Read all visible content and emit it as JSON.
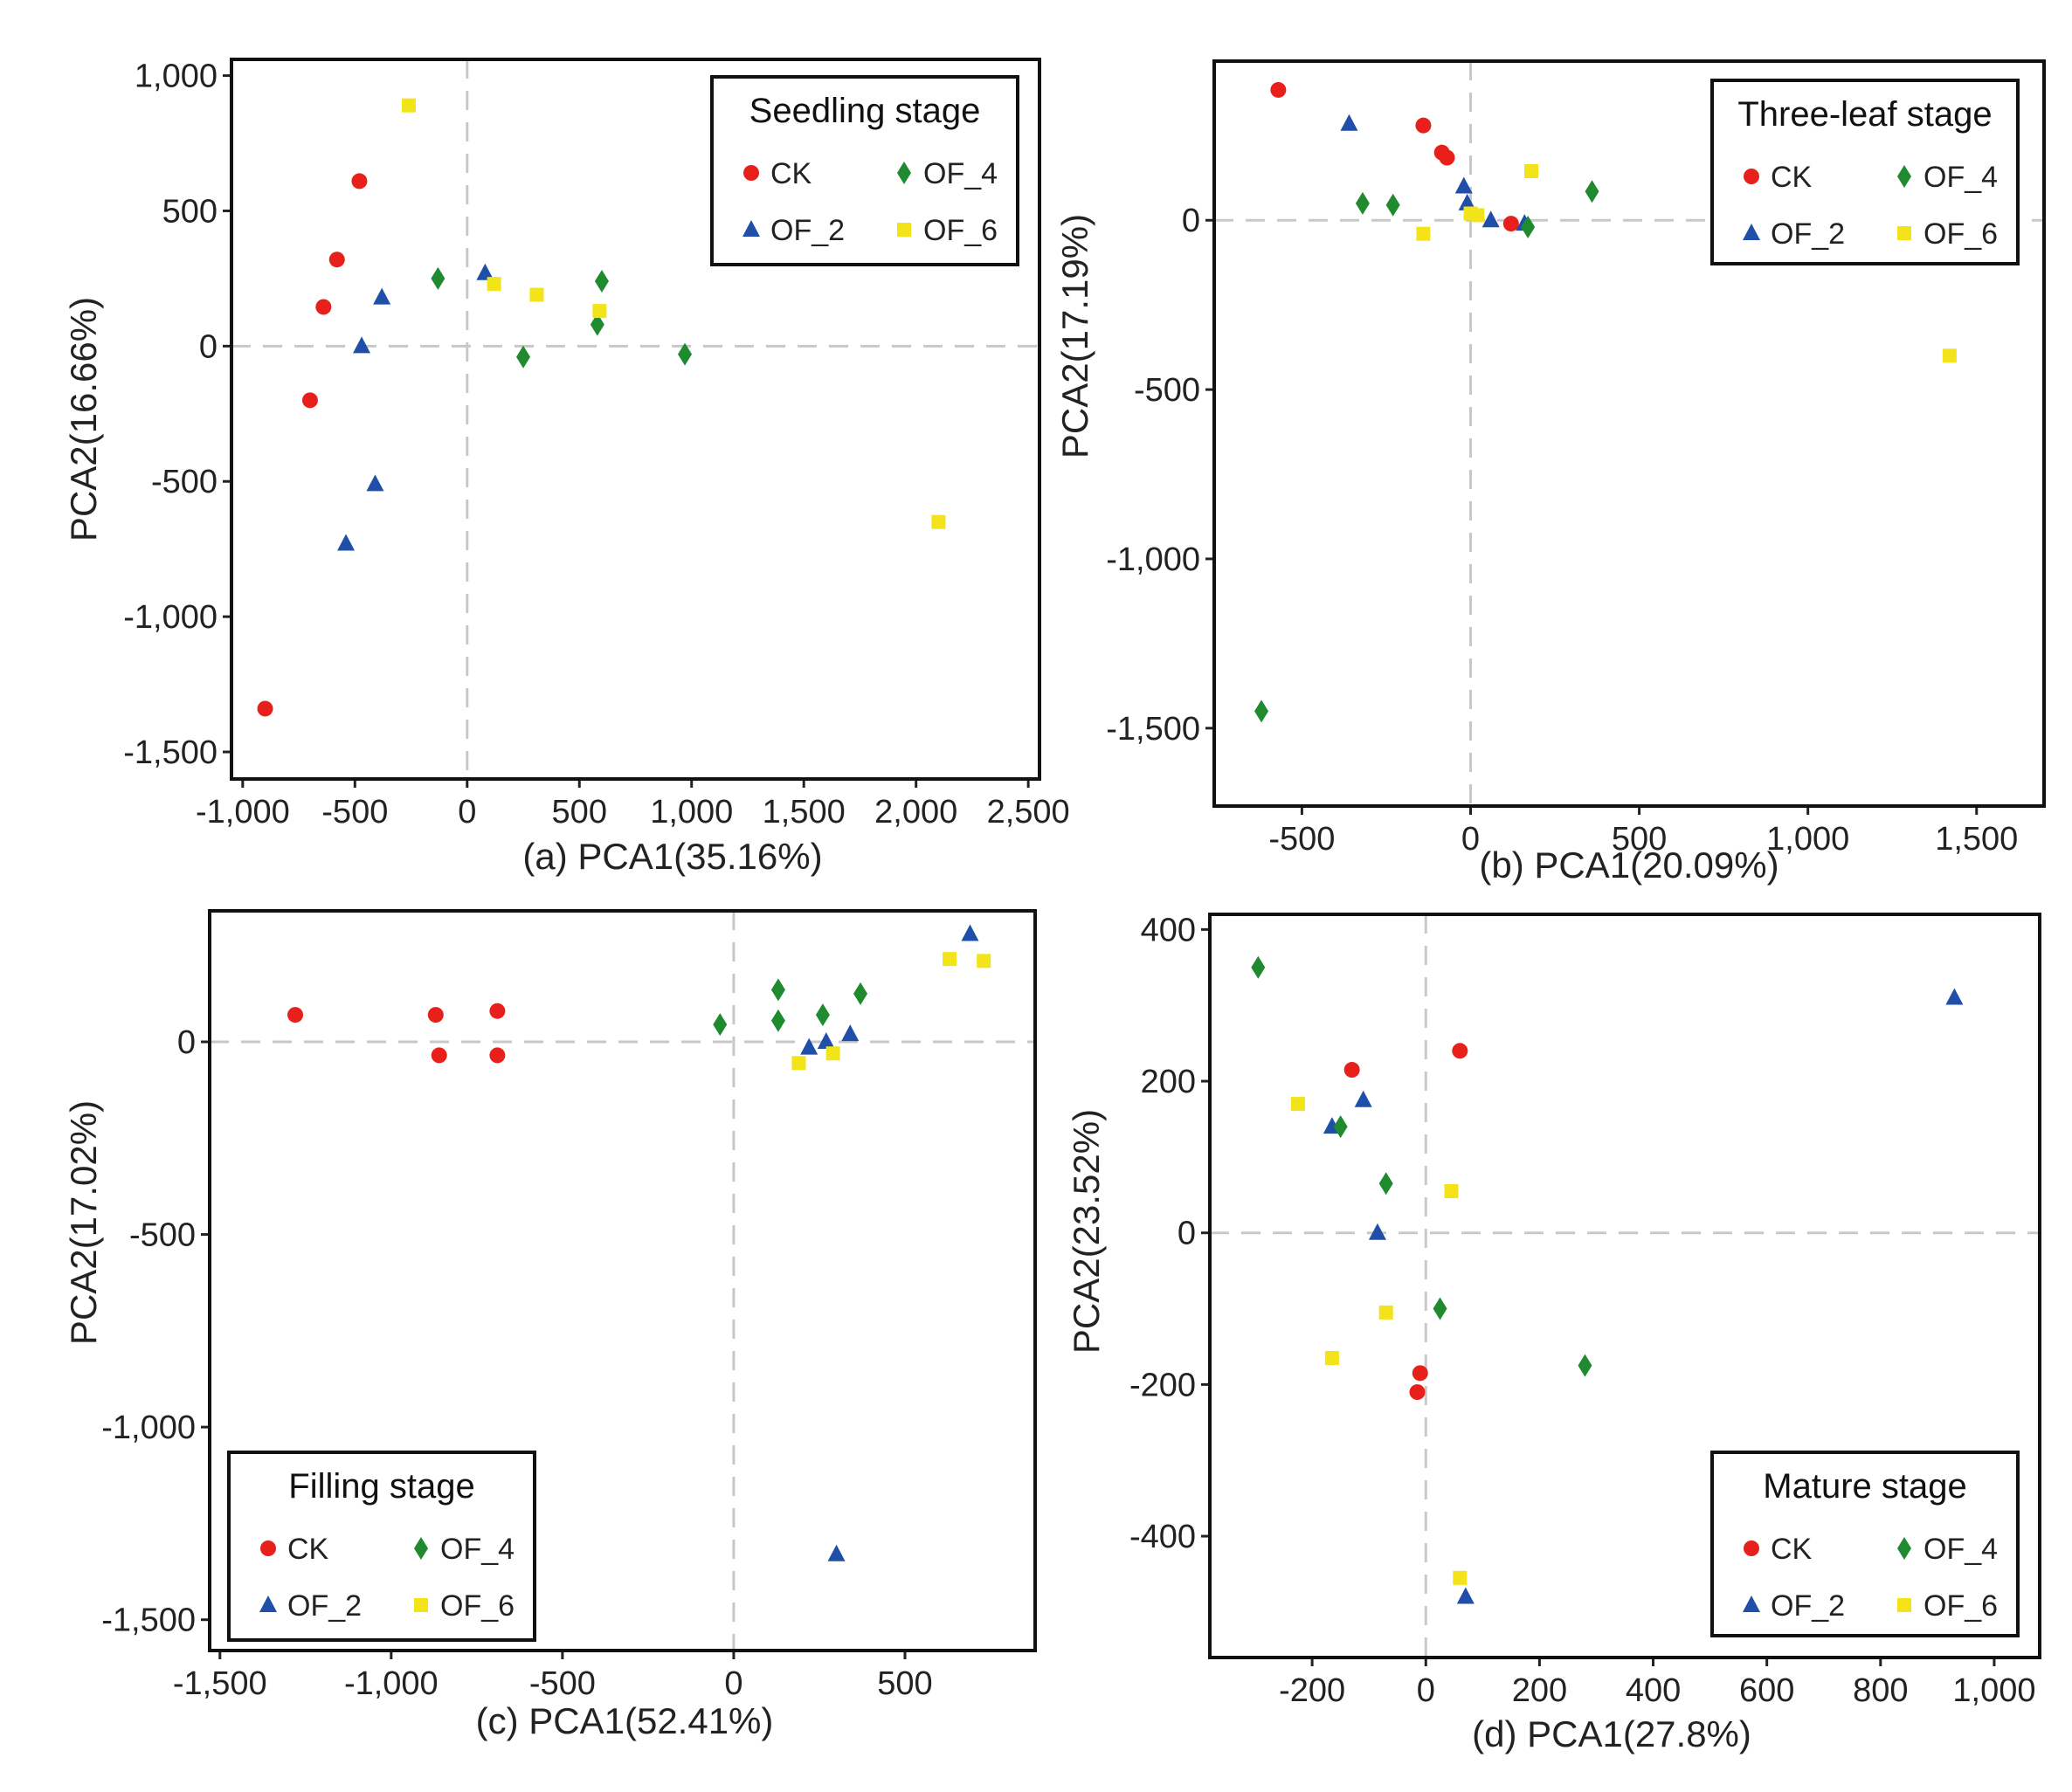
{
  "chart_data": [
    {
      "type": "scatter",
      "panel": "a",
      "caption": "(a)",
      "xlabel": "PCA1(35.16%)",
      "ylabel": "PCA2(16.66%)",
      "xlim": [
        -1050,
        2550
      ],
      "ylim": [
        -1600,
        1060
      ],
      "xticks": [
        -1000,
        -500,
        0,
        500,
        1000,
        1500,
        2000,
        2500
      ],
      "xtick_labels": [
        "-1,000",
        "-500",
        "0",
        "500",
        "1,000",
        "1,500",
        "2,000",
        "2,500"
      ],
      "yticks": [
        -1500,
        -1000,
        -500,
        0,
        500,
        1000
      ],
      "ytick_labels": [
        "-1,500",
        "-1,000",
        "-500",
        "0",
        "500",
        "1,000"
      ],
      "legend_title": "Seedling stage",
      "legend_position": "top-right",
      "series": [
        {
          "name": "CK",
          "color": "#e8201c",
          "shape": "circle",
          "points": [
            [
              -480,
              610
            ],
            [
              -580,
              320
            ],
            [
              -640,
              145
            ],
            [
              -700,
              -200
            ],
            [
              -900,
              -1340
            ]
          ]
        },
        {
          "name": "OF_2",
          "color": "#1f4fa8",
          "shape": "triangle",
          "points": [
            [
              -380,
              180
            ],
            [
              -470,
              0
            ],
            [
              -410,
              -510
            ],
            [
              -540,
              -730
            ],
            [
              80,
              270
            ]
          ]
        },
        {
          "name": "OF_4",
          "color": "#1f8a2e",
          "shape": "diamond",
          "points": [
            [
              -130,
              250
            ],
            [
              250,
              -40
            ],
            [
              580,
              80
            ],
            [
              600,
              240
            ],
            [
              970,
              -30
            ]
          ]
        },
        {
          "name": "OF_6",
          "color": "#f2e31a",
          "shape": "square",
          "points": [
            [
              -260,
              890
            ],
            [
              120,
              230
            ],
            [
              310,
              190
            ],
            [
              590,
              130
            ],
            [
              2100,
              -650
            ]
          ]
        }
      ]
    },
    {
      "type": "scatter",
      "panel": "b",
      "caption": "(b)",
      "xlabel": "PCA1(20.09%)",
      "ylabel": "PCA2(17.19%)",
      "xlim": [
        -760,
        1700
      ],
      "ylim": [
        -1730,
        470
      ],
      "xticks": [
        -500,
        0,
        500,
        1000,
        1500
      ],
      "xtick_labels": [
        "-500",
        "0",
        "500",
        "1,000",
        "1,500"
      ],
      "yticks": [
        -1500,
        -1000,
        -500,
        0
      ],
      "ytick_labels": [
        "-1,500",
        "-1,000",
        "-500",
        "0"
      ],
      "legend_title": "Three-leaf stage",
      "legend_position": "top-right",
      "series": [
        {
          "name": "CK",
          "color": "#e8201c",
          "shape": "circle",
          "points": [
            [
              -570,
              385
            ],
            [
              -140,
              280
            ],
            [
              -85,
              200
            ],
            [
              -70,
              185
            ],
            [
              120,
              -10
            ]
          ]
        },
        {
          "name": "OF_2",
          "color": "#1f4fa8",
          "shape": "triangle",
          "points": [
            [
              -360,
              285
            ],
            [
              -20,
              100
            ],
            [
              60,
              0
            ],
            [
              160,
              -10
            ],
            [
              -10,
              50
            ]
          ]
        },
        {
          "name": "OF_4",
          "color": "#1f8a2e",
          "shape": "diamond",
          "points": [
            [
              -320,
              50
            ],
            [
              -230,
              45
            ],
            [
              170,
              -20
            ],
            [
              360,
              85
            ],
            [
              -620,
              -1450
            ]
          ]
        },
        {
          "name": "OF_6",
          "color": "#f2e31a",
          "shape": "square",
          "points": [
            [
              -140,
              -40
            ],
            [
              0,
              20
            ],
            [
              20,
              15
            ],
            [
              180,
              145
            ],
            [
              1420,
              -400
            ]
          ]
        }
      ]
    },
    {
      "type": "scatter",
      "panel": "c",
      "caption": "(c)",
      "xlabel": "PCA1(52.41%)",
      "ylabel": "PCA2(17.02%)",
      "xlim": [
        -1530,
        880
      ],
      "ylim": [
        -1580,
        340
      ],
      "xticks": [
        -1500,
        -1000,
        -500,
        0,
        500
      ],
      "xtick_labels": [
        "-1,500",
        "-1,000",
        "-500",
        "0",
        "500"
      ],
      "yticks": [
        -1500,
        -1000,
        -500,
        0
      ],
      "ytick_labels": [
        "-1,500",
        "-1,000",
        "-500",
        "0"
      ],
      "legend_title": "Filling stage",
      "legend_position": "bottom-left",
      "series": [
        {
          "name": "CK",
          "color": "#e8201c",
          "shape": "circle",
          "points": [
            [
              -1280,
              70
            ],
            [
              -870,
              70
            ],
            [
              -860,
              -35
            ],
            [
              -690,
              80
            ],
            [
              -690,
              -35
            ]
          ]
        },
        {
          "name": "OF_2",
          "color": "#1f4fa8",
          "shape": "triangle",
          "points": [
            [
              220,
              -15
            ],
            [
              270,
              0
            ],
            [
              340,
              20
            ],
            [
              690,
              280
            ],
            [
              300,
              -1330
            ]
          ]
        },
        {
          "name": "OF_4",
          "color": "#1f8a2e",
          "shape": "diamond",
          "points": [
            [
              -40,
              45
            ],
            [
              130,
              135
            ],
            [
              130,
              55
            ],
            [
              260,
              70
            ],
            [
              370,
              125
            ]
          ]
        },
        {
          "name": "OF_6",
          "color": "#f2e31a",
          "shape": "square",
          "points": [
            [
              190,
              -55
            ],
            [
              290,
              -30
            ],
            [
              630,
              215
            ],
            [
              730,
              210
            ]
          ]
        }
      ]
    },
    {
      "type": "scatter",
      "panel": "d",
      "caption": "(d)",
      "xlabel": "PCA1(27.8%)",
      "ylabel": "PCA2(23.52%)",
      "xlim": [
        -380,
        1080
      ],
      "ylim": [
        -560,
        420
      ],
      "xticks": [
        -200,
        0,
        200,
        400,
        600,
        800,
        1000
      ],
      "xtick_labels": [
        "-200",
        "0",
        "200",
        "400",
        "600",
        "800",
        "1,000"
      ],
      "yticks": [
        -400,
        -200,
        0,
        200,
        400
      ],
      "ytick_labels": [
        "-400",
        "-200",
        "0",
        "200",
        "400"
      ],
      "legend_title": "Mature stage",
      "legend_position": "bottom-right",
      "series": [
        {
          "name": "CK",
          "color": "#e8201c",
          "shape": "circle",
          "points": [
            [
              -130,
              215
            ],
            [
              60,
              240
            ],
            [
              -10,
              -185
            ],
            [
              -15,
              -210
            ]
          ]
        },
        {
          "name": "OF_2",
          "color": "#1f4fa8",
          "shape": "triangle",
          "points": [
            [
              -110,
              175
            ],
            [
              -165,
              140
            ],
            [
              -85,
              0
            ],
            [
              70,
              -480
            ],
            [
              930,
              310
            ]
          ]
        },
        {
          "name": "OF_4",
          "color": "#1f8a2e",
          "shape": "diamond",
          "points": [
            [
              -295,
              350
            ],
            [
              -150,
              140
            ],
            [
              -70,
              65
            ],
            [
              25,
              -100
            ],
            [
              280,
              -175
            ]
          ]
        },
        {
          "name": "OF_6",
          "color": "#f2e31a",
          "shape": "square",
          "points": [
            [
              -225,
              170
            ],
            [
              -165,
              -165
            ],
            [
              -70,
              -105
            ],
            [
              45,
              55
            ],
            [
              60,
              -455
            ]
          ]
        }
      ]
    }
  ]
}
